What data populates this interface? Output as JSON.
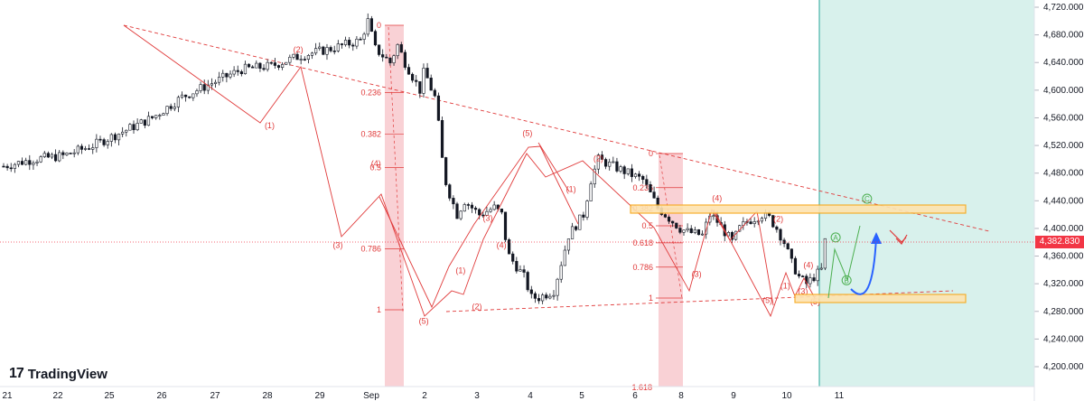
{
  "brand": {
    "name": "TradingView",
    "mark": "17"
  },
  "price_tag": "4,382.830",
  "colors": {
    "up": "#131722",
    "down": "#131722",
    "fib": "#e03a3a",
    "fib_band": "#f7b6bd",
    "target_zone": "#b2e3dc",
    "box": "#f7a81b",
    "blue_arrow": "#2962ff",
    "green_path": "#4caf50",
    "last_price": "#f23645"
  },
  "chart_data": {
    "type": "candlestick",
    "title": "",
    "xlabel": "",
    "ylabel": "",
    "ylim": [
      4180,
      4730
    ],
    "y_ticks": [
      4200,
      4240,
      4280,
      4320,
      4360,
      4400,
      4440,
      4480,
      4520,
      4560,
      4600,
      4640,
      4680,
      4720
    ],
    "y_tick_labels": [
      "4,200.000",
      "4,240.000",
      "4,280.000",
      "4,320.000",
      "4,360.000",
      "4,400.000",
      "4,440.000",
      "4,480.000",
      "4,520.000",
      "4,560.000",
      "4,600.000",
      "4,640.000",
      "4,680.000",
      "4,720.000"
    ],
    "x_ticks": [
      "21",
      "22",
      "25",
      "26",
      "27",
      "28",
      "29",
      "Sep",
      "2",
      "3",
      "4",
      "5",
      "6",
      "8",
      "9",
      "10",
      "11"
    ],
    "close_path": [
      [
        0,
        4490
      ],
      [
        2,
        4500
      ],
      [
        4,
        4505
      ],
      [
        6,
        4520
      ],
      [
        8,
        4540
      ],
      [
        10,
        4560
      ],
      [
        12,
        4590
      ],
      [
        14,
        4610
      ],
      [
        16,
        4630
      ],
      [
        18,
        4635
      ],
      [
        20,
        4650
      ],
      [
        22,
        4660
      ],
      [
        24,
        4672
      ],
      [
        24.5,
        4700
      ],
      [
        25,
        4660
      ],
      [
        25.5,
        4650
      ],
      [
        26,
        4640
      ],
      [
        26.5,
        4665
      ],
      [
        27,
        4640
      ],
      [
        27.5,
        4620
      ],
      [
        28,
        4600
      ],
      [
        28.3,
        4630
      ],
      [
        28.6,
        4610
      ],
      [
        29,
        4590
      ],
      [
        29.2,
        4560
      ],
      [
        29.5,
        4500
      ],
      [
        29.8,
        4460
      ],
      [
        30,
        4450
      ],
      [
        30.5,
        4420
      ],
      [
        31,
        4440
      ],
      [
        31.5,
        4430
      ],
      [
        32,
        4420
      ],
      [
        33,
        4430
      ],
      [
        33.5,
        4420
      ],
      [
        33.8,
        4380
      ],
      [
        34,
        4360
      ],
      [
        35,
        4330
      ],
      [
        35.5,
        4300
      ],
      [
        36,
        4300
      ],
      [
        37,
        4310
      ],
      [
        37.5,
        4350
      ],
      [
        38,
        4390
      ],
      [
        39,
        4420
      ],
      [
        39.5,
        4470
      ],
      [
        40,
        4500
      ],
      [
        41,
        4490
      ],
      [
        42,
        4480
      ],
      [
        43,
        4470
      ],
      [
        43.5,
        4450
      ],
      [
        44,
        4430
      ],
      [
        45,
        4410
      ],
      [
        45.5,
        4400
      ],
      [
        46,
        4395
      ],
      [
        47,
        4390
      ],
      [
        47.5,
        4420
      ],
      [
        48,
        4410
      ],
      [
        48.5,
        4395
      ],
      [
        49,
        4380
      ],
      [
        49.5,
        4400
      ],
      [
        50,
        4410
      ],
      [
        51,
        4420
      ],
      [
        51.5,
        4415
      ],
      [
        52,
        4400
      ],
      [
        52.5,
        4380
      ],
      [
        53,
        4350
      ],
      [
        53.5,
        4330
      ],
      [
        54,
        4320
      ],
      [
        54.5,
        4330
      ],
      [
        55,
        4340
      ],
      [
        55.3,
        4390
      ]
    ],
    "fib_levels": [
      {
        "label": "0",
        "value": 0
      },
      {
        "label": "0.236",
        "value": 0.236
      },
      {
        "label": "0.382",
        "value": 0.382
      },
      {
        "label": "0.5",
        "value": 0.5
      },
      {
        "label": "0.786",
        "value": 0.786
      },
      {
        "label": "1",
        "value": 1
      }
    ],
    "fib_levels_2": [
      {
        "label": "0",
        "value": 0
      },
      {
        "label": "0.236",
        "value": 0.236
      },
      {
        "label": "0.382",
        "value": 0.382
      },
      {
        "label": "0.5",
        "value": 0.5
      },
      {
        "label": "0.618",
        "value": 0.618
      },
      {
        "label": "0.786",
        "value": 0.786
      },
      {
        "label": "1",
        "value": 1
      }
    ],
    "fib_extra_label": "1.618",
    "wave_labels": [
      {
        "t": "(1)",
        "x": 19.5,
        "y": 4545
      },
      {
        "t": "(2)",
        "x": 21.6,
        "y": 4655
      },
      {
        "t": "(3)",
        "x": 24.5,
        "y": 4372
      },
      {
        "t": "(4)",
        "x": 27.3,
        "y": 4490
      },
      {
        "t": "(5)",
        "x": 30.8,
        "y": 4262
      },
      {
        "t": "(1)",
        "x": 33.5,
        "y": 4335
      },
      {
        "t": "(2)",
        "x": 34.7,
        "y": 4283
      },
      {
        "t": "(3)",
        "x": 35.5,
        "y": 4411
      },
      {
        "t": "(4)",
        "x": 36.5,
        "y": 4372
      },
      {
        "t": "(5)",
        "x": 38.4,
        "y": 4534
      },
      {
        "t": "(1)",
        "x": 41.6,
        "y": 4453
      },
      {
        "t": "(2)",
        "x": 43.6,
        "y": 4497
      },
      {
        "t": "(3)",
        "x": 50.8,
        "y": 4330
      },
      {
        "t": "(4)",
        "x": 52.3,
        "y": 4440
      },
      {
        "t": "(2)",
        "x": 56.8,
        "y": 4410
      },
      {
        "t": "(5)",
        "x": 56.0,
        "y": 4292
      },
      {
        "t": "(1)",
        "x": 57.3,
        "y": 4313
      },
      {
        "t": "(4)",
        "x": 59.0,
        "y": 4343
      },
      {
        "t": "(3)",
        "x": 58.6,
        "y": 4305
      },
      {
        "t": "(5)",
        "x": 59.5,
        "y": 4290
      }
    ],
    "projection_labels": [
      {
        "t": "A",
        "x": 61.0,
        "y": 4387
      },
      {
        "t": "B",
        "x": 61.8,
        "y": 4325
      },
      {
        "t": "C",
        "x": 63.3,
        "y": 4443
      }
    ]
  }
}
